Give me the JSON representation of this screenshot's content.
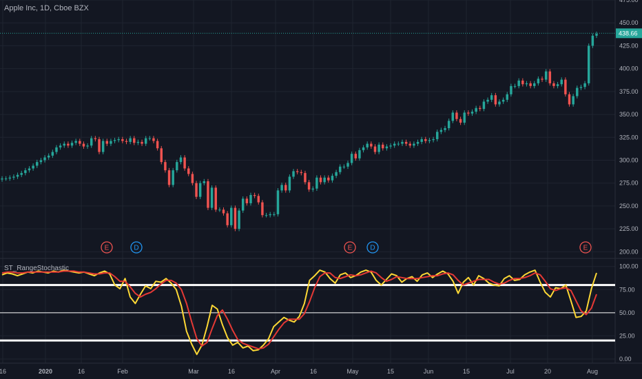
{
  "header": {
    "title": "Apple Inc, 1D, Cboe BZX"
  },
  "indicator": {
    "title": "ST_RangeStochastic"
  },
  "colors": {
    "background": "#131722",
    "grid": "#1f2430",
    "up": "#26a69a",
    "down": "#ef5350",
    "fast_line": "#fdd835",
    "slow_line": "#e53935",
    "level_line": "#ffffff",
    "last_price_line": "#26a69a",
    "earnings": "#ef5350",
    "dividend": "#2196f3"
  },
  "chart_data": [
    {
      "type": "candlestick",
      "title": "Apple Inc, 1D, Cboe BZX",
      "ylim": [
        195,
        475
      ],
      "y_ticks": [
        "200.00",
        "225.00",
        "250.00",
        "275.00",
        "300.00",
        "325.00",
        "350.00",
        "375.00",
        "400.00",
        "425.00",
        "450.00",
        "475.00"
      ],
      "x_ticks": [
        "16",
        "2020",
        "16",
        "Feb",
        "Mar",
        "16",
        "Apr",
        "16",
        "May",
        "15",
        "Jun",
        "15",
        "Jul",
        "20",
        "Aug"
      ],
      "last_price": 438.66,
      "last_price_label": "438.66",
      "closes": [
        280,
        280,
        281,
        282,
        284,
        286,
        289,
        291,
        294,
        298,
        300,
        303,
        305,
        309,
        314,
        316,
        318,
        316,
        319,
        321,
        318,
        315,
        316,
        324,
        323,
        309,
        321,
        318,
        321,
        322,
        323,
        321,
        320,
        324,
        319,
        320,
        318,
        324,
        324,
        321,
        313,
        298,
        289,
        273,
        289,
        298,
        303,
        291,
        285,
        275,
        260,
        275,
        277,
        248,
        270,
        246,
        246,
        242,
        229,
        248,
        225,
        245,
        258,
        253,
        262,
        261,
        254,
        240,
        240,
        241,
        241,
        267,
        273,
        267,
        282,
        288,
        287,
        286,
        276,
        268,
        269,
        281,
        276,
        281,
        278,
        283,
        287,
        293,
        293,
        297,
        307,
        302,
        311,
        314,
        318,
        315,
        309,
        317,
        313,
        315,
        316,
        318,
        318,
        320,
        318,
        316,
        318,
        320,
        323,
        321,
        322,
        323,
        331,
        333,
        335,
        343,
        352,
        345,
        341,
        352,
        351,
        353,
        357,
        356,
        364,
        366,
        371,
        361,
        364,
        366,
        372,
        381,
        381,
        387,
        383,
        384,
        381,
        384,
        389,
        388,
        397,
        384,
        381,
        383,
        388,
        372,
        361,
        370,
        379,
        380,
        384,
        425,
        436,
        438
      ],
      "annotations": [
        {
          "label": "E",
          "kind": "earnings",
          "date": "Jan 28"
        },
        {
          "label": "D",
          "kind": "dividend",
          "date": "Feb 7"
        },
        {
          "label": "E",
          "kind": "earnings",
          "date": "Apr 30"
        },
        {
          "label": "D",
          "kind": "dividend",
          "date": "May 8"
        },
        {
          "label": "E",
          "kind": "earnings",
          "date": "Jul 30"
        }
      ]
    },
    {
      "type": "line",
      "title": "ST_RangeStochastic",
      "ylim": [
        0,
        105
      ],
      "y_ticks": [
        "0.00",
        "25.00",
        "50.00",
        "75.00",
        "100.00"
      ],
      "levels": [
        20,
        50,
        80
      ],
      "series": [
        {
          "values": [
            91,
            93,
            92,
            90,
            92,
            94,
            93,
            95,
            94,
            93,
            95,
            94,
            96,
            95,
            94,
            93,
            94,
            92,
            90,
            93,
            95,
            92,
            80,
            76,
            87,
            67,
            60,
            70,
            79,
            76,
            84,
            83,
            87,
            82,
            75,
            57,
            30,
            16,
            5,
            15,
            35,
            58,
            54,
            37,
            23,
            15,
            18,
            12,
            14,
            9,
            10,
            15,
            22,
            35,
            40,
            45,
            42,
            40,
            46,
            60,
            85,
            90,
            96,
            94,
            87,
            82,
            91,
            93,
            88,
            90,
            94,
            96,
            94,
            85,
            80,
            86,
            92,
            90,
            83,
            87,
            89,
            84,
            91,
            93,
            88,
            92,
            95,
            92,
            84,
            71,
            83,
            88,
            80,
            90,
            87,
            82,
            80,
            79,
            87,
            90,
            85,
            86,
            91,
            94,
            96,
            83,
            72,
            67,
            77,
            76,
            80,
            63,
            45,
            46,
            52,
            76,
            93
          ]
        },
        {
          "values": [
            93,
            94,
            94,
            93,
            93,
            94,
            94,
            94,
            94,
            94,
            94,
            94,
            95,
            95,
            95,
            94,
            94,
            93,
            92,
            92,
            93,
            93,
            89,
            84,
            84,
            78,
            71,
            67,
            70,
            72,
            76,
            81,
            85,
            85,
            82,
            75,
            60,
            40,
            22,
            14,
            18,
            33,
            47,
            53,
            43,
            31,
            21,
            17,
            15,
            13,
            11,
            12,
            16,
            24,
            32,
            39,
            43,
            43,
            43,
            49,
            62,
            77,
            89,
            93,
            93,
            88,
            87,
            89,
            91,
            90,
            91,
            93,
            95,
            93,
            88,
            84,
            86,
            89,
            88,
            87,
            87,
            87,
            88,
            89,
            90,
            90,
            92,
            93,
            91,
            85,
            80,
            82,
            84,
            86,
            86,
            86,
            83,
            81,
            82,
            85,
            87,
            87,
            88,
            90,
            93,
            91,
            84,
            76,
            74,
            76,
            77,
            74,
            63,
            52,
            48,
            55,
            70
          ]
        }
      ]
    }
  ]
}
